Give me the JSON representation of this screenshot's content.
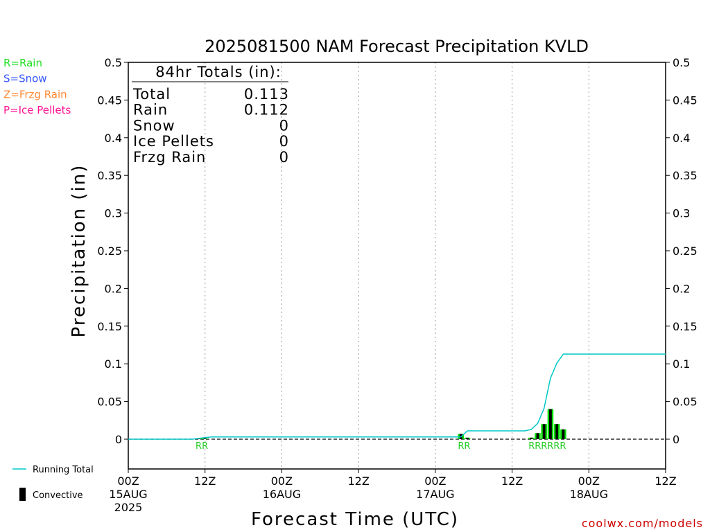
{
  "chart_data": {
    "type": "bar",
    "title": "2025081500 NAM Forecast Precipitation KVLD",
    "xlabel": "Forecast Time (UTC)",
    "ylabel": "Precipitation (in)",
    "ylim": [
      0,
      0.5
    ],
    "y_ticks": [
      "0",
      "0.05",
      "0.1",
      "0.15",
      "0.2",
      "0.25",
      "0.3",
      "0.35",
      "0.4",
      "0.45",
      "0.5"
    ],
    "x_ticks": [
      {
        "hour": 0,
        "lines": [
          "00Z",
          "15AUG",
          "2025"
        ]
      },
      {
        "hour": 12,
        "lines": [
          "12Z"
        ]
      },
      {
        "hour": 24,
        "lines": [
          "00Z",
          "16AUG"
        ]
      },
      {
        "hour": 36,
        "lines": [
          "12Z"
        ]
      },
      {
        "hour": 48,
        "lines": [
          "00Z",
          "17AUG"
        ]
      },
      {
        "hour": 60,
        "lines": [
          "12Z"
        ]
      },
      {
        "hour": 72,
        "lines": [
          "00Z",
          "18AUG"
        ]
      },
      {
        "hour": 84,
        "lines": [
          "12Z"
        ]
      }
    ],
    "x_range_hours": [
      0,
      84
    ],
    "grid": "vertical dotted at 12h",
    "series": [
      {
        "name": "Convective",
        "hours": [
          11,
          12,
          52,
          53,
          63,
          64,
          65,
          66,
          67,
          68
        ],
        "values": [
          0.001,
          0.001,
          0.007,
          0.002,
          0.002,
          0.008,
          0.02,
          0.04,
          0.02,
          0.013
        ]
      },
      {
        "name": "Running Total",
        "hours": [
          0,
          10,
          11,
          12,
          13,
          52,
          53,
          60,
          62,
          63,
          64,
          65,
          66,
          67,
          68,
          84
        ],
        "values": [
          0,
          0,
          0.001,
          0.002,
          0.003,
          0.003,
          0.011,
          0.011,
          0.011,
          0.013,
          0.021,
          0.041,
          0.081,
          0.101,
          0.113,
          0.113
        ]
      }
    ],
    "precip_type_labels": [
      {
        "text": "RR",
        "hours": [
          11,
          12
        ]
      },
      {
        "text": "RR",
        "hours": [
          52,
          53
        ]
      },
      {
        "text": "RRRRRR",
        "hours": [
          63,
          68
        ]
      }
    ],
    "totals": {
      "header": "84hr Totals (in):",
      "rows": [
        {
          "label": "Total",
          "value": "0.113"
        },
        {
          "label": "Rain",
          "value": "0.112"
        },
        {
          "label": "Snow",
          "value": "0"
        },
        {
          "label": "Ice Pellets",
          "value": "0"
        },
        {
          "label": "Frzg Rain",
          "value": "0"
        }
      ]
    },
    "type_legend": [
      {
        "text": "R=Rain",
        "color": "#22dd22"
      },
      {
        "text": "S=Snow",
        "color": "#3355ff"
      },
      {
        "text": "Z=Frzg Rain",
        "color": "#ff8833"
      },
      {
        "text": "P=Ice Pellets",
        "color": "#ff1493"
      }
    ],
    "series_legend": [
      {
        "text": "Running Total",
        "color": "#00c8c8"
      },
      {
        "text": "Convective",
        "color": "#000000"
      }
    ],
    "credit": "coolwx.com/models",
    "colors": {
      "bar_fill": "#00dd00",
      "bar_convective": "#000000",
      "running_total": "#00c8c8",
      "grid": "#999999",
      "credit": "#cc0000"
    }
  }
}
